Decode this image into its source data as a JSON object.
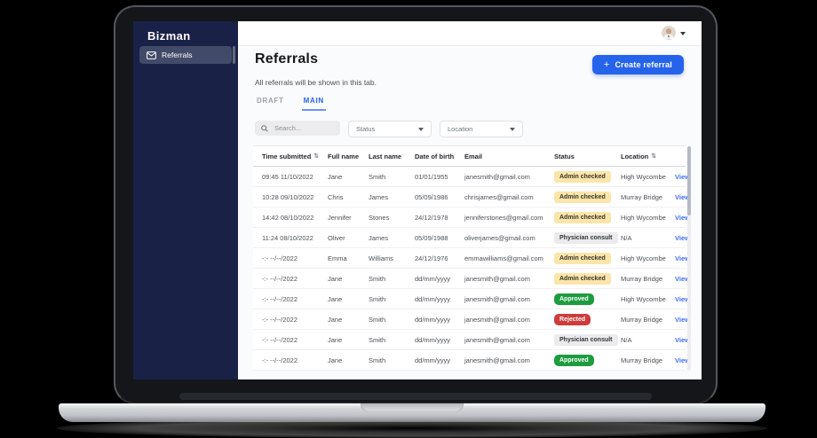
{
  "sidebar": {
    "brand": "Bizman",
    "items": [
      {
        "label": "Referrals",
        "icon": "envelope-icon",
        "active": true
      }
    ]
  },
  "topbar": {
    "avatar_icon": "user-avatar",
    "caret_icon": "chevron-down-icon"
  },
  "main": {
    "title": "Referrals",
    "subtitle": "All referrals will be shown in this tab.",
    "create_button_label": "Create referral",
    "create_button_plus": "+",
    "tabs": [
      {
        "label": "DRAFT",
        "active": false
      },
      {
        "label": "MAIN",
        "active": true
      }
    ],
    "filters": {
      "search_placeholder": "Search...",
      "search_icon": "search-icon",
      "status_label": "Status",
      "location_label": "Location"
    },
    "table": {
      "sort_glyph": "⇅",
      "columns": [
        {
          "label": "Time submitted",
          "sortable": true
        },
        {
          "label": "Full name",
          "sortable": false
        },
        {
          "label": "Last name",
          "sortable": false
        },
        {
          "label": "Date of birth",
          "sortable": false
        },
        {
          "label": "Email",
          "sortable": false
        },
        {
          "label": "Status",
          "sortable": false
        },
        {
          "label": "Location",
          "sortable": true
        },
        {
          "label": "",
          "sortable": false
        }
      ],
      "action_label": "View",
      "rows": [
        {
          "time": "09:45 11/10/2022",
          "first": "Jane",
          "last": "Smith",
          "dob": "01/01/1955",
          "email": "janesmith@gmail.com",
          "status": "Admin checked",
          "status_type": "admin",
          "location": "High Wycombe"
        },
        {
          "time": "10:28 09/10/2022",
          "first": "Chris",
          "last": "James",
          "dob": "05/09/1986",
          "email": "chrisjames@gmail.com",
          "status": "Admin checked",
          "status_type": "admin",
          "location": "Murray Bridge"
        },
        {
          "time": "14:42 08/10/2022",
          "first": "Jennifer",
          "last": "Stones",
          "dob": "24/12/1978",
          "email": "jenniferstones@gmail.com",
          "status": "Admin checked",
          "status_type": "admin",
          "location": "High Wycombe"
        },
        {
          "time": "11:24 08/10/2022",
          "first": "Oliver",
          "last": "James",
          "dob": "05/09/1988",
          "email": "oliverjames@gmail.com",
          "status": "Physician consult",
          "status_type": "physician",
          "location": "N/A"
        },
        {
          "time": "-:- --/--/2022",
          "first": "Emma",
          "last": "Williams",
          "dob": "24/12/1976",
          "email": "emmawilliams@gmail.com",
          "status": "Admin checked",
          "status_type": "admin",
          "location": "High Wycombe"
        },
        {
          "time": "-:- --/--/2022",
          "first": "Jane",
          "last": "Smith",
          "dob": "dd/mm/yyyy",
          "email": "janesmith@gmail.com",
          "status": "Admin checked",
          "status_type": "admin",
          "location": "Murray Bridge"
        },
        {
          "time": "-:- --/--/2022",
          "first": "Jane",
          "last": "Smith",
          "dob": "dd/mm/yyyy",
          "email": "janesmith@gmail.com",
          "status": "Approved",
          "status_type": "approved",
          "location": "High Wycombe"
        },
        {
          "time": "-:- --/--/2022",
          "first": "Jane",
          "last": "Smith",
          "dob": "dd/mm/yyyy",
          "email": "janesmith@gmail.com",
          "status": "Rejected",
          "status_type": "rejected",
          "location": "Murray Bridge"
        },
        {
          "time": "-:- --/--/2022",
          "first": "Jane",
          "last": "Smith",
          "dob": "dd/mm/yyyy",
          "email": "janesmith@gmail.com",
          "status": "Physician consult",
          "status_type": "physician",
          "location": "N/A"
        },
        {
          "time": "-:- --/--/2022",
          "first": "Jane",
          "last": "Smith",
          "dob": "dd/mm/yyyy",
          "email": "janesmith@gmail.com",
          "status": "Approved",
          "status_type": "approved",
          "location": "Murray Bridge"
        }
      ]
    }
  },
  "colors": {
    "accent_blue": "#2563eb",
    "sidebar_navy": "#1a2147",
    "badge_admin_bg": "#fbe5a9",
    "badge_physician_bg": "#ebebee",
    "badge_approved_bg": "#1d9c3f",
    "badge_rejected_bg": "#ce3b3b",
    "view_link": "#3d6df5"
  }
}
